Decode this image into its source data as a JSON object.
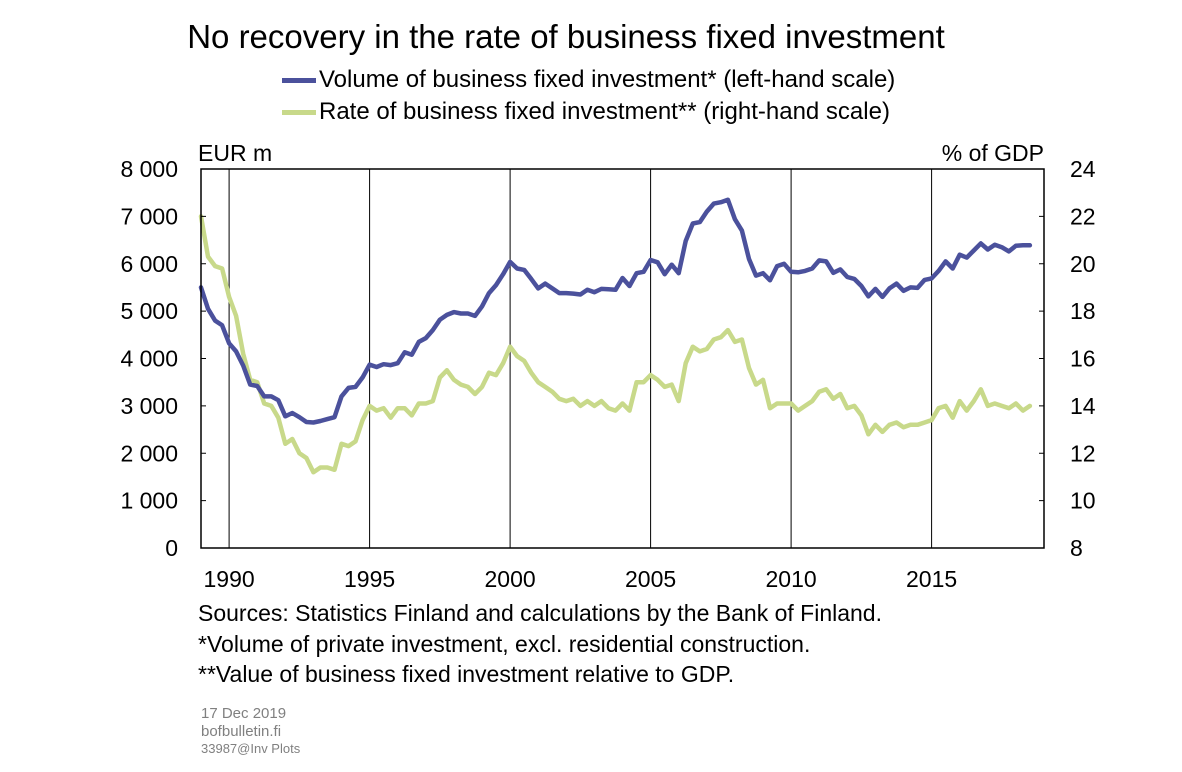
{
  "chart_data": {
    "type": "line",
    "title": "No recovery in the rate of business fixed investment",
    "left_axis": {
      "unit_label": "EUR m",
      "range": [
        0,
        8000
      ],
      "ticks": [
        "0",
        "1 000",
        "2 000",
        "3 000",
        "4 000",
        "5 000",
        "6 000",
        "7 000",
        "8 000"
      ]
    },
    "right_axis": {
      "unit_label": "% of GDP",
      "range": [
        8,
        24
      ],
      "ticks": [
        "8",
        "10",
        "12",
        "14",
        "16",
        "18",
        "20",
        "22",
        "24"
      ]
    },
    "x_axis": {
      "range": [
        1989,
        2019
      ],
      "ticks": [
        "1990",
        "1995",
        "2000",
        "2005",
        "2010",
        "2015"
      ]
    },
    "grid": "vertical lines at x ticks",
    "legend_placement": "top",
    "series": [
      {
        "name": "Volume of business fixed investment* (left-hand scale)",
        "axis": "left",
        "color": "#4B519C",
        "x": [
          1989.0,
          1989.25,
          1989.5,
          1989.75,
          1990.0,
          1990.25,
          1990.5,
          1990.75,
          1991.0,
          1991.25,
          1991.5,
          1991.75,
          1992.0,
          1992.25,
          1992.5,
          1992.75,
          1993.0,
          1993.25,
          1993.5,
          1993.75,
          1994.0,
          1994.25,
          1994.5,
          1994.75,
          1995.0,
          1995.25,
          1995.5,
          1995.75,
          1996.0,
          1996.25,
          1996.5,
          1996.75,
          1997.0,
          1997.25,
          1997.5,
          1997.75,
          1998.0,
          1998.25,
          1998.5,
          1998.75,
          1999.0,
          1999.25,
          1999.5,
          1999.75,
          2000.0,
          2000.25,
          2000.5,
          2000.75,
          2001.0,
          2001.25,
          2001.5,
          2001.75,
          2002.0,
          2002.25,
          2002.5,
          2002.75,
          2003.0,
          2003.25,
          2003.5,
          2003.75,
          2004.0,
          2004.25,
          2004.5,
          2004.75,
          2005.0,
          2005.25,
          2005.5,
          2005.75,
          2006.0,
          2006.25,
          2006.5,
          2006.75,
          2007.0,
          2007.25,
          2007.5,
          2007.75,
          2008.0,
          2008.25,
          2008.5,
          2008.75,
          2009.0,
          2009.25,
          2009.5,
          2009.75,
          2010.0,
          2010.25,
          2010.5,
          2010.75,
          2011.0,
          2011.25,
          2011.5,
          2011.75,
          2012.0,
          2012.25,
          2012.5,
          2012.75,
          2013.0,
          2013.25,
          2013.5,
          2013.75,
          2014.0,
          2014.25,
          2014.5,
          2014.75,
          2015.0,
          2015.25,
          2015.5,
          2015.75,
          2016.0,
          2016.25,
          2016.5,
          2016.75,
          2017.0,
          2017.25,
          2017.5,
          2017.75,
          2018.0,
          2018.25,
          2018.5
        ],
        "values": [
          5500,
          5050,
          4800,
          4700,
          4320,
          4150,
          3850,
          3450,
          3420,
          3200,
          3200,
          3120,
          2780,
          2850,
          2760,
          2660,
          2650,
          2680,
          2720,
          2760,
          3200,
          3380,
          3400,
          3600,
          3870,
          3820,
          3880,
          3860,
          3900,
          4130,
          4080,
          4350,
          4430,
          4600,
          4820,
          4920,
          4980,
          4950,
          4950,
          4900,
          5100,
          5380,
          5550,
          5780,
          6040,
          5900,
          5870,
          5680,
          5480,
          5580,
          5480,
          5380,
          5380,
          5370,
          5350,
          5450,
          5400,
          5470,
          5460,
          5450,
          5700,
          5530,
          5800,
          5830,
          6080,
          6030,
          5780,
          5980,
          5800,
          6480,
          6850,
          6880,
          7100,
          7270,
          7300,
          7350,
          6940,
          6700,
          6100,
          5750,
          5800,
          5650,
          5950,
          6000,
          5830,
          5820,
          5850,
          5900,
          6070,
          6050,
          5810,
          5880,
          5720,
          5680,
          5530,
          5310,
          5470,
          5300,
          5480,
          5580,
          5430,
          5500,
          5490,
          5660,
          5690,
          5850,
          6050,
          5900,
          6190,
          6130,
          6280,
          6430,
          6300,
          6400,
          6350,
          6260,
          6380,
          6390,
          6390
        ]
      },
      {
        "name": "Rate of business fixed investment** (right-hand scale)",
        "axis": "right",
        "color": "#C8D98A",
        "x": [
          1989.0,
          1989.25,
          1989.5,
          1989.75,
          1990.0,
          1990.25,
          1990.5,
          1990.75,
          1991.0,
          1991.25,
          1991.5,
          1991.75,
          1992.0,
          1992.25,
          1992.5,
          1992.75,
          1993.0,
          1993.25,
          1993.5,
          1993.75,
          1994.0,
          1994.25,
          1994.5,
          1994.75,
          1995.0,
          1995.25,
          1995.5,
          1995.75,
          1996.0,
          1996.25,
          1996.5,
          1996.75,
          1997.0,
          1997.25,
          1997.5,
          1997.75,
          1998.0,
          1998.25,
          1998.5,
          1998.75,
          1999.0,
          1999.25,
          1999.5,
          1999.75,
          2000.0,
          2000.25,
          2000.5,
          2000.75,
          2001.0,
          2001.25,
          2001.5,
          2001.75,
          2002.0,
          2002.25,
          2002.5,
          2002.75,
          2003.0,
          2003.25,
          2003.5,
          2003.75,
          2004.0,
          2004.25,
          2004.5,
          2004.75,
          2005.0,
          2005.25,
          2005.5,
          2005.75,
          2006.0,
          2006.25,
          2006.5,
          2006.75,
          2007.0,
          2007.25,
          2007.5,
          2007.75,
          2008.0,
          2008.25,
          2008.5,
          2008.75,
          2009.0,
          2009.25,
          2009.5,
          2009.75,
          2010.0,
          2010.25,
          2010.5,
          2010.75,
          2011.0,
          2011.25,
          2011.5,
          2011.75,
          2012.0,
          2012.25,
          2012.5,
          2012.75,
          2013.0,
          2013.25,
          2013.5,
          2013.75,
          2014.0,
          2014.25,
          2014.5,
          2014.75,
          2015.0,
          2015.25,
          2015.5,
          2015.75,
          2016.0,
          2016.25,
          2016.5,
          2016.75,
          2017.0,
          2017.25,
          2017.5,
          2017.75,
          2018.0,
          2018.25,
          2018.5
        ],
        "values": [
          22.0,
          20.3,
          19.9,
          19.8,
          18.6,
          17.8,
          16.2,
          15.1,
          15.0,
          14.1,
          14.0,
          13.5,
          12.4,
          12.6,
          12.0,
          11.8,
          11.2,
          11.4,
          11.4,
          11.3,
          12.4,
          12.3,
          12.5,
          13.4,
          14.0,
          13.8,
          13.9,
          13.5,
          13.9,
          13.9,
          13.6,
          14.1,
          14.1,
          14.2,
          15.2,
          15.5,
          15.1,
          14.9,
          14.8,
          14.5,
          14.8,
          15.4,
          15.3,
          15.8,
          16.5,
          16.1,
          15.9,
          15.4,
          15.0,
          14.8,
          14.6,
          14.3,
          14.2,
          14.3,
          14.0,
          14.2,
          14.0,
          14.2,
          13.9,
          13.8,
          14.1,
          13.8,
          15.0,
          15.0,
          15.3,
          15.1,
          14.8,
          14.9,
          14.2,
          15.8,
          16.5,
          16.3,
          16.4,
          16.8,
          16.9,
          17.2,
          16.7,
          16.8,
          15.6,
          14.9,
          15.1,
          13.9,
          14.1,
          14.1,
          14.1,
          13.8,
          14.0,
          14.2,
          14.6,
          14.7,
          14.3,
          14.5,
          13.9,
          14.0,
          13.6,
          12.8,
          13.2,
          12.9,
          13.2,
          13.3,
          13.1,
          13.2,
          13.2,
          13.3,
          13.4,
          13.9,
          14.0,
          13.5,
          14.2,
          13.8,
          14.2,
          14.7,
          14.0,
          14.1,
          14.0,
          13.9,
          14.1,
          13.8,
          14.0
        ]
      }
    ]
  },
  "notes": {
    "sources": "Sources: Statistics Finland and calculations by the Bank of Finland.",
    "footnote1": "*Volume of private investment, excl. residential construction.",
    "footnote2": "**Value of business fixed investment relative to GDP."
  },
  "meta": {
    "date": "17 Dec 2019",
    "site": "bofbulletin.fi",
    "code": "33987@Inv Plots"
  }
}
